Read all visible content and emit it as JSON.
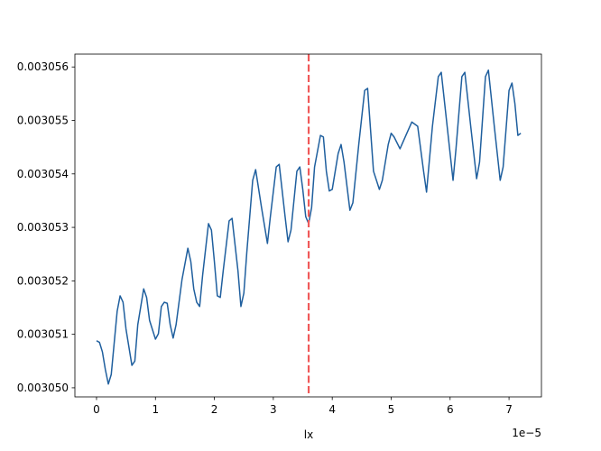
{
  "chart_data": {
    "type": "line",
    "xlabel": "lx",
    "x_offset_label": "1e−5",
    "x": [
      0,
      0.05,
      0.1,
      0.15,
      0.2,
      0.25,
      0.3,
      0.35,
      0.4,
      0.45,
      0.5,
      0.6,
      0.65,
      0.7,
      0.8,
      0.85,
      0.9,
      1.0,
      1.05,
      1.1,
      1.15,
      1.2,
      1.25,
      1.3,
      1.35,
      1.45,
      1.55,
      1.6,
      1.65,
      1.7,
      1.75,
      1.8,
      1.9,
      1.95,
      2.0,
      2.05,
      2.1,
      2.15,
      2.25,
      2.3,
      2.4,
      2.45,
      2.5,
      2.55,
      2.65,
      2.7,
      2.8,
      2.9,
      2.95,
      3.05,
      3.1,
      3.2,
      3.25,
      3.3,
      3.4,
      3.45,
      3.5,
      3.55,
      3.6,
      3.65,
      3.7,
      3.8,
      3.85,
      3.9,
      3.95,
      4.0,
      4.1,
      4.15,
      4.2,
      4.3,
      4.35,
      4.45,
      4.55,
      4.6,
      4.7,
      4.8,
      4.85,
      4.95,
      5.0,
      5.05,
      5.15,
      5.25,
      5.35,
      5.45,
      5.55,
      5.6,
      5.7,
      5.8,
      5.85,
      5.95,
      6.05,
      6.1,
      6.2,
      6.25,
      6.35,
      6.45,
      6.5,
      6.6,
      6.65,
      6.75,
      6.85,
      6.9,
      7.0,
      7.05,
      7.1,
      7.15,
      7.2
    ],
    "series": [
      {
        "color": "#1f5f9e",
        "values": [
          0.00305088,
          0.00305085,
          0.00305067,
          0.00305034,
          0.00305007,
          0.00305025,
          0.00305084,
          0.00305143,
          0.00305172,
          0.0030516,
          0.0030511,
          0.00305042,
          0.0030505,
          0.00305118,
          0.00305185,
          0.00305169,
          0.00305126,
          0.00305091,
          0.00305101,
          0.00305152,
          0.0030516,
          0.00305158,
          0.00305118,
          0.00305093,
          0.00305118,
          0.00305202,
          0.00305261,
          0.00305236,
          0.00305185,
          0.0030516,
          0.00305152,
          0.0030521,
          0.00305307,
          0.00305295,
          0.00305236,
          0.00305172,
          0.00305169,
          0.00305219,
          0.00305312,
          0.00305317,
          0.00305219,
          0.00305152,
          0.00305177,
          0.00305253,
          0.00305388,
          0.00305408,
          0.00305337,
          0.0030527,
          0.0030532,
          0.00305413,
          0.00305418,
          0.0030532,
          0.00305273,
          0.00305295,
          0.00305405,
          0.00305413,
          0.00305371,
          0.0030532,
          0.00305307,
          0.00305337,
          0.00305413,
          0.00305472,
          0.00305469,
          0.00305405,
          0.00305368,
          0.00305371,
          0.00305438,
          0.00305455,
          0.00305422,
          0.00305332,
          0.00305346,
          0.00305455,
          0.00305556,
          0.0030556,
          0.00305405,
          0.00305371,
          0.00305388,
          0.00305455,
          0.00305476,
          0.00305469,
          0.00305447,
          0.00305472,
          0.00305497,
          0.00305489,
          0.00305405,
          0.00305366,
          0.00305489,
          0.00305582,
          0.0030559,
          0.00305489,
          0.00305388,
          0.00305447,
          0.00305582,
          0.0030559,
          0.00305489,
          0.00305391,
          0.00305422,
          0.00305582,
          0.00305594,
          0.00305489,
          0.00305388,
          0.00305413,
          0.00305556,
          0.0030557,
          0.00305531,
          0.00305472,
          0.00305476
        ]
      }
    ],
    "vline": {
      "x": 3.6,
      "color": "#f05a5a"
    },
    "xlim": [
      -0.367,
      7.55
    ],
    "xticks": [
      0,
      1,
      2,
      3,
      4,
      5,
      6,
      7
    ],
    "ylim": [
      0.00304983,
      0.00305624
    ],
    "yticks": [
      {
        "value": 0.00305,
        "label": "0.003050"
      },
      0.003051,
      0.003052,
      0.003053,
      0.003054,
      0.003055,
      0.003056
    ]
  }
}
